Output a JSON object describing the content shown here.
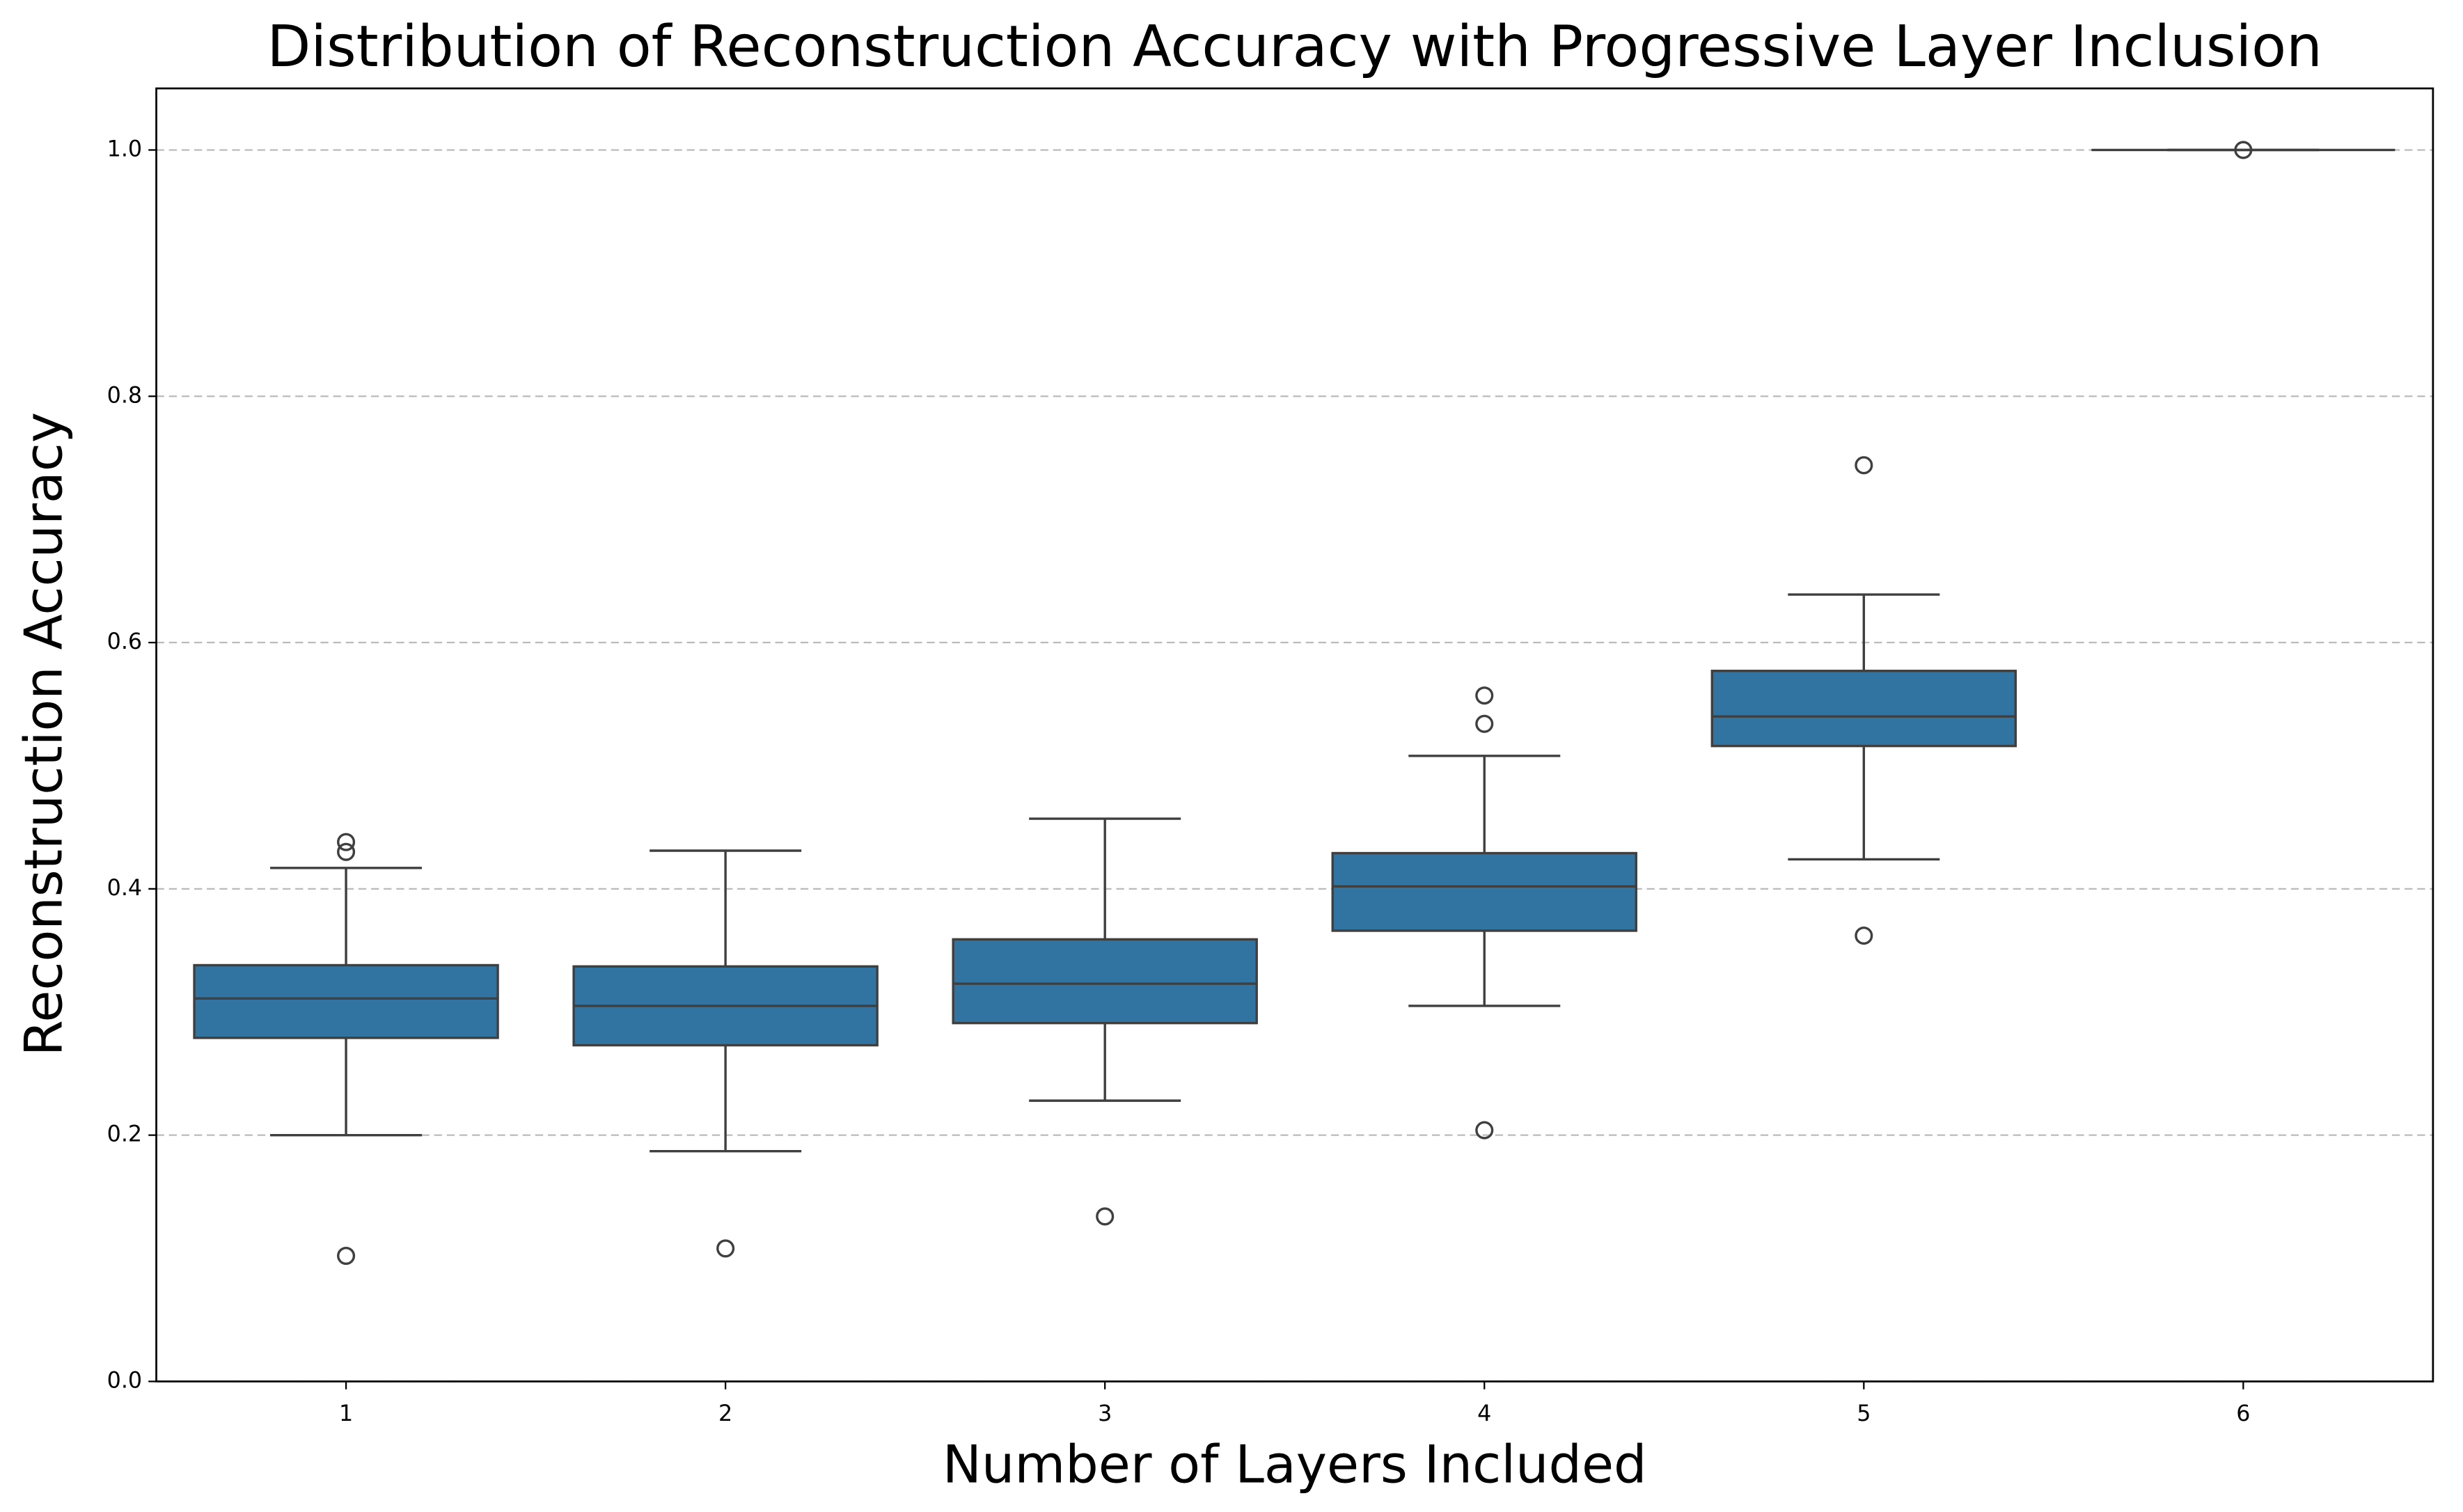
{
  "chart_data": {
    "type": "box",
    "title": "Distribution of Reconstruction Accuracy with Progressive Layer Inclusion",
    "x_label": "Number of Layers Included",
    "y_label": "Reconstruction Accuracy",
    "categories": [
      "1",
      "2",
      "3",
      "4",
      "5",
      "6"
    ],
    "color": "#3274a1",
    "edge_color": "#3f3f3f",
    "grid": true,
    "ylim": [
      0,
      1.05
    ],
    "yticks": [
      {
        "value": 0,
        "label": "0.0"
      },
      {
        "value": 0.2,
        "label": "0.2"
      },
      {
        "value": 0.4,
        "label": "0.4"
      },
      {
        "value": 0.6,
        "label": "0.6"
      },
      {
        "value": 0.8,
        "label": "0.8"
      },
      {
        "value": 1,
        "label": "1.0"
      }
    ],
    "boxes": [
      {
        "whislo": 0.2,
        "q1": 0.279,
        "med": 0.311,
        "q3": 0.338,
        "whishi": 0.417,
        "fliers": [
          0.438,
          0.43,
          0.102
        ]
      },
      {
        "whislo": 0.187,
        "q1": 0.273,
        "med": 0.305,
        "q3": 0.337,
        "whishi": 0.431,
        "fliers": [
          0.108
        ]
      },
      {
        "whislo": 0.228,
        "q1": 0.291,
        "med": 0.323,
        "q3": 0.359,
        "whishi": 0.457,
        "fliers": [
          0.134
        ]
      },
      {
        "whislo": 0.305,
        "q1": 0.366,
        "med": 0.402,
        "q3": 0.429,
        "whishi": 0.508,
        "fliers": [
          0.557,
          0.534,
          0.204
        ]
      },
      {
        "whislo": 0.424,
        "q1": 0.516,
        "med": 0.54,
        "q3": 0.577,
        "whishi": 0.639,
        "fliers": [
          0.744,
          0.362
        ]
      },
      {
        "whislo": 1,
        "q1": 1,
        "med": 1,
        "q3": 1,
        "whishi": 1,
        "fliers": [
          1
        ]
      }
    ]
  }
}
